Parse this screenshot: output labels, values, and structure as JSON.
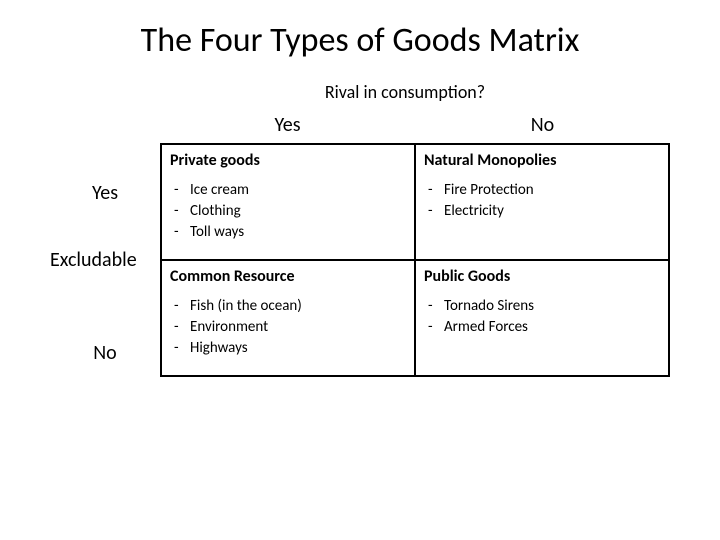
{
  "title": "The Four Types of Goods Matrix",
  "topQuestion": "Rival in consumption?",
  "colHeaders": {
    "yes": "Yes",
    "no": "No"
  },
  "rowLabels": {
    "yes": "Yes",
    "excludable": "Excludable",
    "no": "No"
  },
  "cells": {
    "private": {
      "heading": "Private goods",
      "items": [
        "Ice cream",
        "Clothing",
        "Toll ways"
      ]
    },
    "naturalMonopolies": {
      "heading": "Natural Monopolies",
      "items": [
        "Fire Protection",
        "Electricity"
      ]
    },
    "commonResource": {
      "heading": "Common Resource",
      "items": [
        "Fish (in the ocean)",
        "Environment",
        "Highways"
      ]
    },
    "publicGoods": {
      "heading": "Public Goods",
      "items": [
        "Tornado Sirens",
        "Armed Forces"
      ]
    }
  },
  "style": {
    "background": "#ffffff",
    "textColor": "#000000",
    "borderColor": "#000000",
    "titleFontSize": 34,
    "questionFontSize": 18,
    "headerFontSize": 20,
    "cellHeadingFontSize": 16,
    "itemFontSize": 15
  }
}
